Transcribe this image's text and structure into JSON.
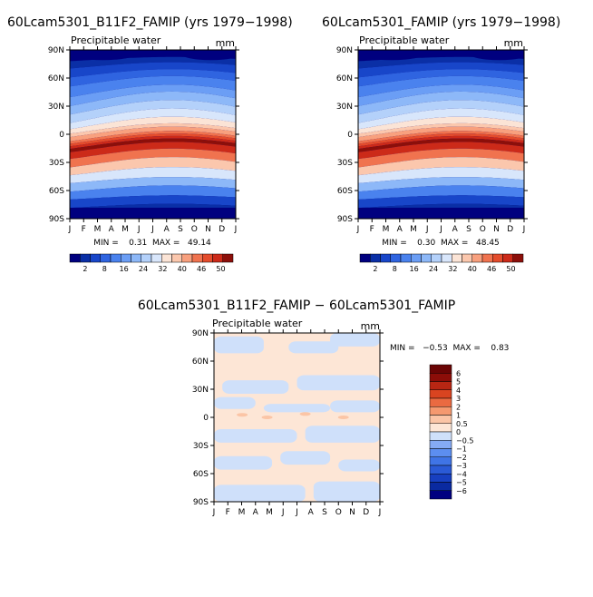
{
  "chart_data": [
    {
      "type": "heatmap",
      "title": "60Lcam5301_B11F2_FAMIP (yrs 1979−1998)",
      "subtitle": "Precipitable water",
      "units": "mm",
      "x_ticks": [
        "J",
        "F",
        "M",
        "A",
        "M",
        "J",
        "J",
        "A",
        "S",
        "O",
        "N",
        "D",
        "J"
      ],
      "y_ticks": [
        "90N",
        "60N",
        "30N",
        "0",
        "30S",
        "60S",
        "90S"
      ],
      "stats": "MIN =    0.31  MAX =   49.14",
      "levels": [
        2,
        4,
        8,
        12,
        16,
        20,
        24,
        28,
        32,
        36,
        40,
        44,
        46,
        48,
        50
      ],
      "colorbar_labels": [
        "2",
        "8",
        "16",
        "24",
        "32",
        "40",
        "46",
        "50"
      ],
      "colors": [
        "#00007f",
        "#0a2fa6",
        "#1846c9",
        "#2f64e0",
        "#4a82ee",
        "#6b9ef5",
        "#8db8f8",
        "#b4d1fa",
        "#d8e6fb",
        "#fbe4d6",
        "#fbc7ad",
        "#f8a07e",
        "#f0734f",
        "#e44c2c",
        "#cc2a19",
        "#8c0f0a"
      ],
      "grid": false
    },
    {
      "type": "heatmap",
      "title": "60Lcam5301_FAMIP (yrs 1979−1998)",
      "subtitle": "Precipitable water",
      "units": "mm",
      "x_ticks": [
        "J",
        "F",
        "M",
        "A",
        "M",
        "J",
        "J",
        "A",
        "S",
        "O",
        "N",
        "D",
        "J"
      ],
      "y_ticks": [
        "90N",
        "60N",
        "30N",
        "0",
        "30S",
        "60S",
        "90S"
      ],
      "stats": "MIN =    0.30  MAX =   48.45",
      "levels": [
        2,
        4,
        8,
        12,
        16,
        20,
        24,
        28,
        32,
        36,
        40,
        44,
        46,
        48,
        50
      ],
      "colorbar_labels": [
        "2",
        "8",
        "16",
        "24",
        "32",
        "40",
        "46",
        "50"
      ],
      "colors": [
        "#00007f",
        "#0a2fa6",
        "#1846c9",
        "#2f64e0",
        "#4a82ee",
        "#6b9ef5",
        "#8db8f8",
        "#b4d1fa",
        "#d8e6fb",
        "#fbe4d6",
        "#fbc7ad",
        "#f8a07e",
        "#f0734f",
        "#e44c2c",
        "#cc2a19",
        "#8c0f0a"
      ],
      "grid": false
    },
    {
      "type": "heatmap",
      "title": "60Lcam5301_B11F2_FAMIP − 60Lcam5301_FAMIP",
      "subtitle": "Precipitable water",
      "units": "mm",
      "x_ticks": [
        "J",
        "F",
        "M",
        "A",
        "M",
        "J",
        "J",
        "A",
        "S",
        "O",
        "N",
        "D",
        "J"
      ],
      "y_ticks": [
        "90N",
        "60N",
        "30N",
        "0",
        "30S",
        "60S",
        "90S"
      ],
      "stats": "MIN =   −0.53  MAX =    0.83",
      "levels": [
        -6,
        -5,
        -4,
        -3,
        -2,
        -1,
        -0.5,
        0,
        0.5,
        1,
        2,
        3,
        4,
        5,
        6
      ],
      "colorbar_labels": [
        "6",
        "5",
        "4",
        "3",
        "2",
        "1",
        "0.5",
        "0",
        "−0.5",
        "−1",
        "−2",
        "−3",
        "−4",
        "−5",
        "−6"
      ],
      "colors": [
        "#000080",
        "#0a2aa0",
        "#173fc0",
        "#2a5ad6",
        "#3f74e6",
        "#5c8ef0",
        "#85abf5",
        "#cfe0fa",
        "#fde6d6",
        "#fbc5a6",
        "#f5996f",
        "#ea6a41",
        "#d94420",
        "#b82613",
        "#8c0d08",
        "#6a0404"
      ],
      "grid": false
    }
  ]
}
